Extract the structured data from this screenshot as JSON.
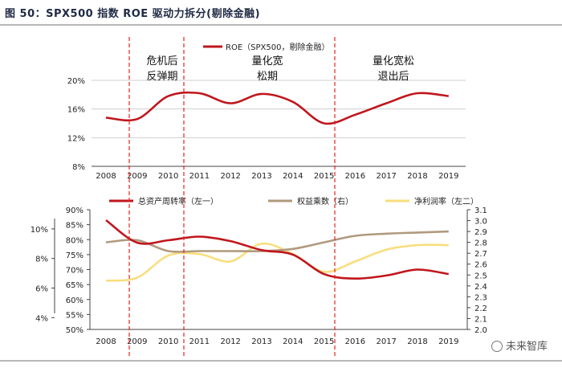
{
  "figure_title": "图 50：SPX500 指数 ROE 驱动力拆分(剔除金融)",
  "watermark": "未来智库",
  "colors": {
    "red": "#c0161d",
    "tan": "#b09a7e",
    "yellow": "#f8de7e",
    "grid": "#cfcfcf",
    "divider": "#e3261f"
  },
  "phases": [
    {
      "line1": "危机后",
      "line2": "反弹期"
    },
    {
      "line1": "量化宽",
      "line2": "松期"
    },
    {
      "line1": "量化宽松",
      "line2": "退出后"
    }
  ],
  "chart_data": [
    {
      "type": "line",
      "title": "ROE（SPX500，剔除金融）",
      "categories": [
        "2008",
        "2009",
        "2010",
        "2011",
        "2012",
        "2013",
        "2014",
        "2015",
        "2016",
        "2017",
        "2018",
        "2019"
      ],
      "yticks": [
        "8%",
        "12%",
        "16%",
        "20%"
      ],
      "ylim": [
        8,
        20
      ],
      "series": [
        {
          "name": "ROE（SPX500，剔除金融）",
          "color": "#c0161d",
          "values": [
            14.8,
            14.6,
            17.8,
            18.2,
            16.8,
            18.1,
            17.0,
            14.0,
            15.2,
            16.8,
            18.2,
            17.8
          ]
        }
      ]
    },
    {
      "type": "line",
      "categories": [
        "2008",
        "2009",
        "2010",
        "2011",
        "2012",
        "2013",
        "2014",
        "2015",
        "2016",
        "2017",
        "2018",
        "2019"
      ],
      "y_left_inner": {
        "ticks": [
          "50%",
          "55%",
          "60%",
          "65%",
          "70%",
          "75%",
          "80%",
          "85%",
          "90%"
        ],
        "range": [
          50,
          90
        ]
      },
      "y_left_outer": {
        "ticks": [
          "4%",
          "6%",
          "8%",
          "10%"
        ],
        "range": [
          3.2,
          11.3
        ]
      },
      "y_right": {
        "ticks": [
          "2.0",
          "2.1",
          "2.2",
          "2.3",
          "2.4",
          "2.5",
          "2.6",
          "2.7",
          "2.8",
          "2.9",
          "3.0",
          "3.1"
        ],
        "range": [
          2.0,
          3.1
        ]
      },
      "series": [
        {
          "name": "总资产周转率（左一）",
          "color": "#c0161d",
          "axis": "left_inner",
          "values": [
            86.5,
            79.0,
            79.8,
            81.0,
            79.5,
            76.5,
            75.0,
            68.5,
            67.0,
            68.0,
            70.0,
            68.5
          ]
        },
        {
          "name": "权益乘数（右）",
          "color": "#b09a7e",
          "axis": "right",
          "values": [
            2.8,
            2.82,
            2.72,
            2.72,
            2.72,
            2.72,
            2.74,
            2.8,
            2.86,
            2.88,
            2.89,
            2.9
          ]
        },
        {
          "name": "净利润率（左二）",
          "color": "#f8de7e",
          "axis": "left_outer",
          "values": [
            6.5,
            6.7,
            8.2,
            8.3,
            7.8,
            9.0,
            8.3,
            7.1,
            7.8,
            8.6,
            8.9,
            8.9
          ]
        }
      ]
    }
  ]
}
